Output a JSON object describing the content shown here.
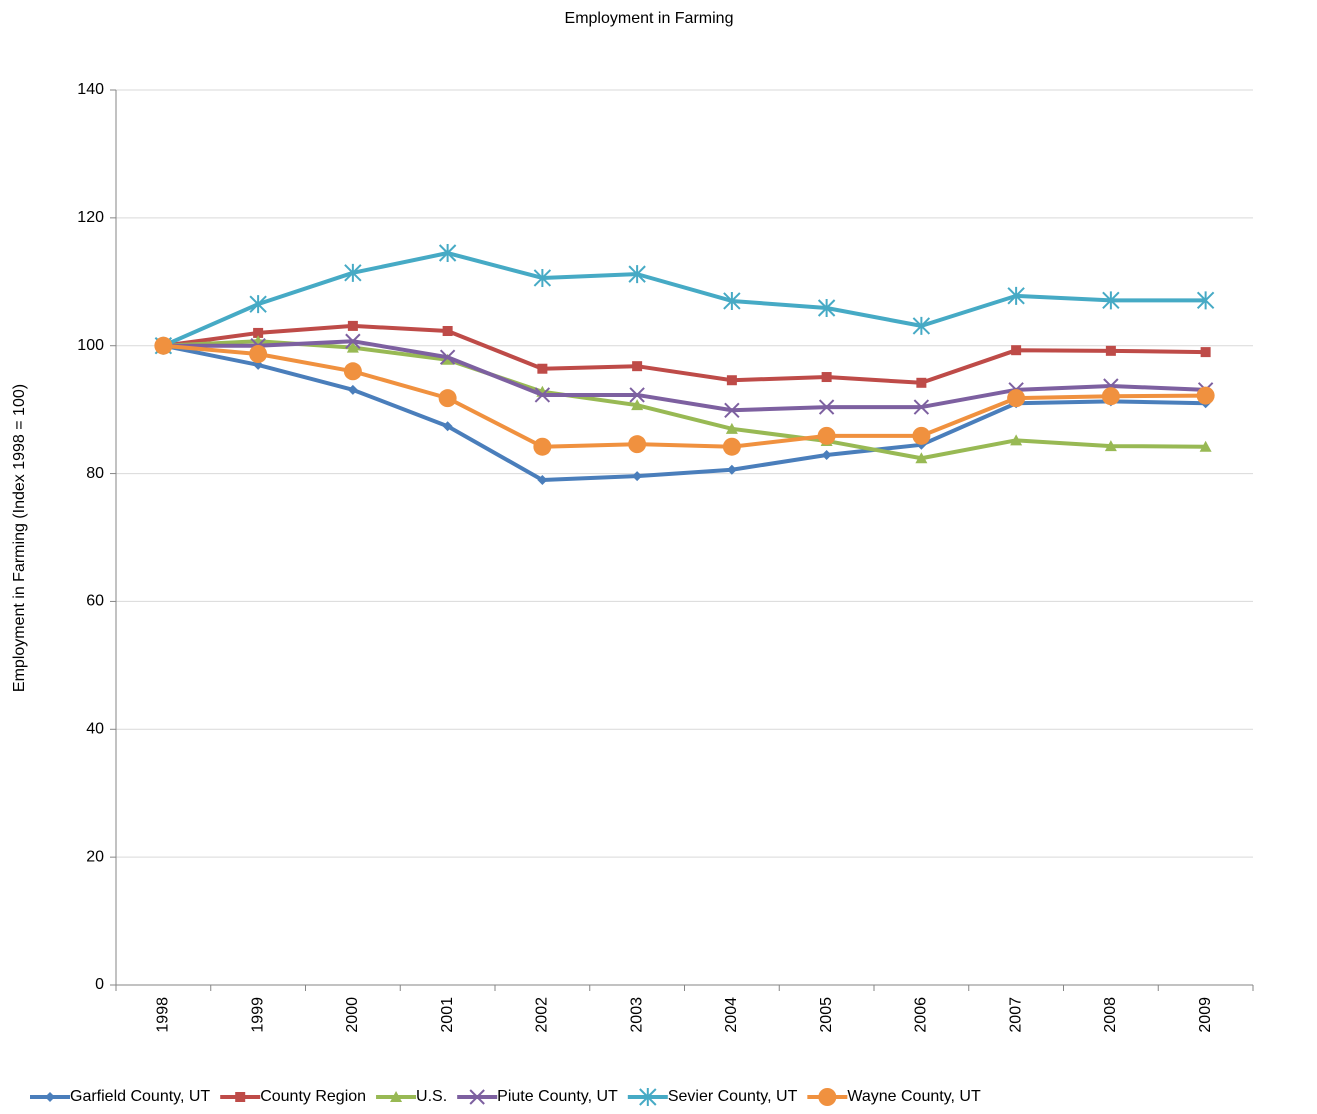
{
  "chart_data": {
    "type": "line",
    "title": "Employment in Farming",
    "y_label": "Employment in Farming (Index 1998 = 100)",
    "categories": [
      "1998",
      "1999",
      "2000",
      "2001",
      "2002",
      "2003",
      "2004",
      "2005",
      "2006",
      "2007",
      "2008",
      "2009"
    ],
    "ylim": [
      0,
      140
    ],
    "yticks": [
      0,
      20,
      40,
      60,
      80,
      100,
      120,
      140
    ],
    "grid": true,
    "legend": "bottom",
    "series": [
      {
        "name": "Garfield County, UT",
        "color": "#4a7ebb",
        "marker": "diamond",
        "values": [
          100,
          97.0,
          93.1,
          87.4,
          79.0,
          79.6,
          80.6,
          82.9,
          84.5,
          91.0,
          91.3,
          91.0
        ]
      },
      {
        "name": "County Region",
        "color": "#be4b48",
        "marker": "square",
        "values": [
          100,
          102.0,
          103.1,
          102.3,
          96.4,
          96.8,
          94.6,
          95.1,
          94.2,
          99.3,
          99.2,
          99.0
        ]
      },
      {
        "name": "U.S.",
        "color": "#98b954",
        "marker": "triangle",
        "values": [
          100,
          100.7,
          99.7,
          97.8,
          92.8,
          90.7,
          87.0,
          85.1,
          82.4,
          85.2,
          84.3,
          84.2
        ]
      },
      {
        "name": "Piute County, UT",
        "color": "#7d60a0",
        "marker": "x",
        "values": [
          100,
          100.0,
          100.7,
          98.2,
          92.3,
          92.3,
          89.9,
          90.4,
          90.4,
          93.1,
          93.7,
          93.1
        ]
      },
      {
        "name": "Sevier County, UT",
        "color": "#46aac5",
        "marker": "asterisk",
        "values": [
          100,
          106.5,
          111.4,
          114.5,
          110.6,
          111.2,
          107.0,
          105.9,
          103.1,
          107.8,
          107.1,
          107.1
        ]
      },
      {
        "name": "Wayne County, UT",
        "color": "#f0913f",
        "marker": "circle",
        "values": [
          100,
          98.7,
          96.0,
          91.8,
          84.2,
          84.6,
          84.2,
          85.9,
          85.9,
          91.8,
          92.1,
          92.2
        ]
      }
    ]
  }
}
